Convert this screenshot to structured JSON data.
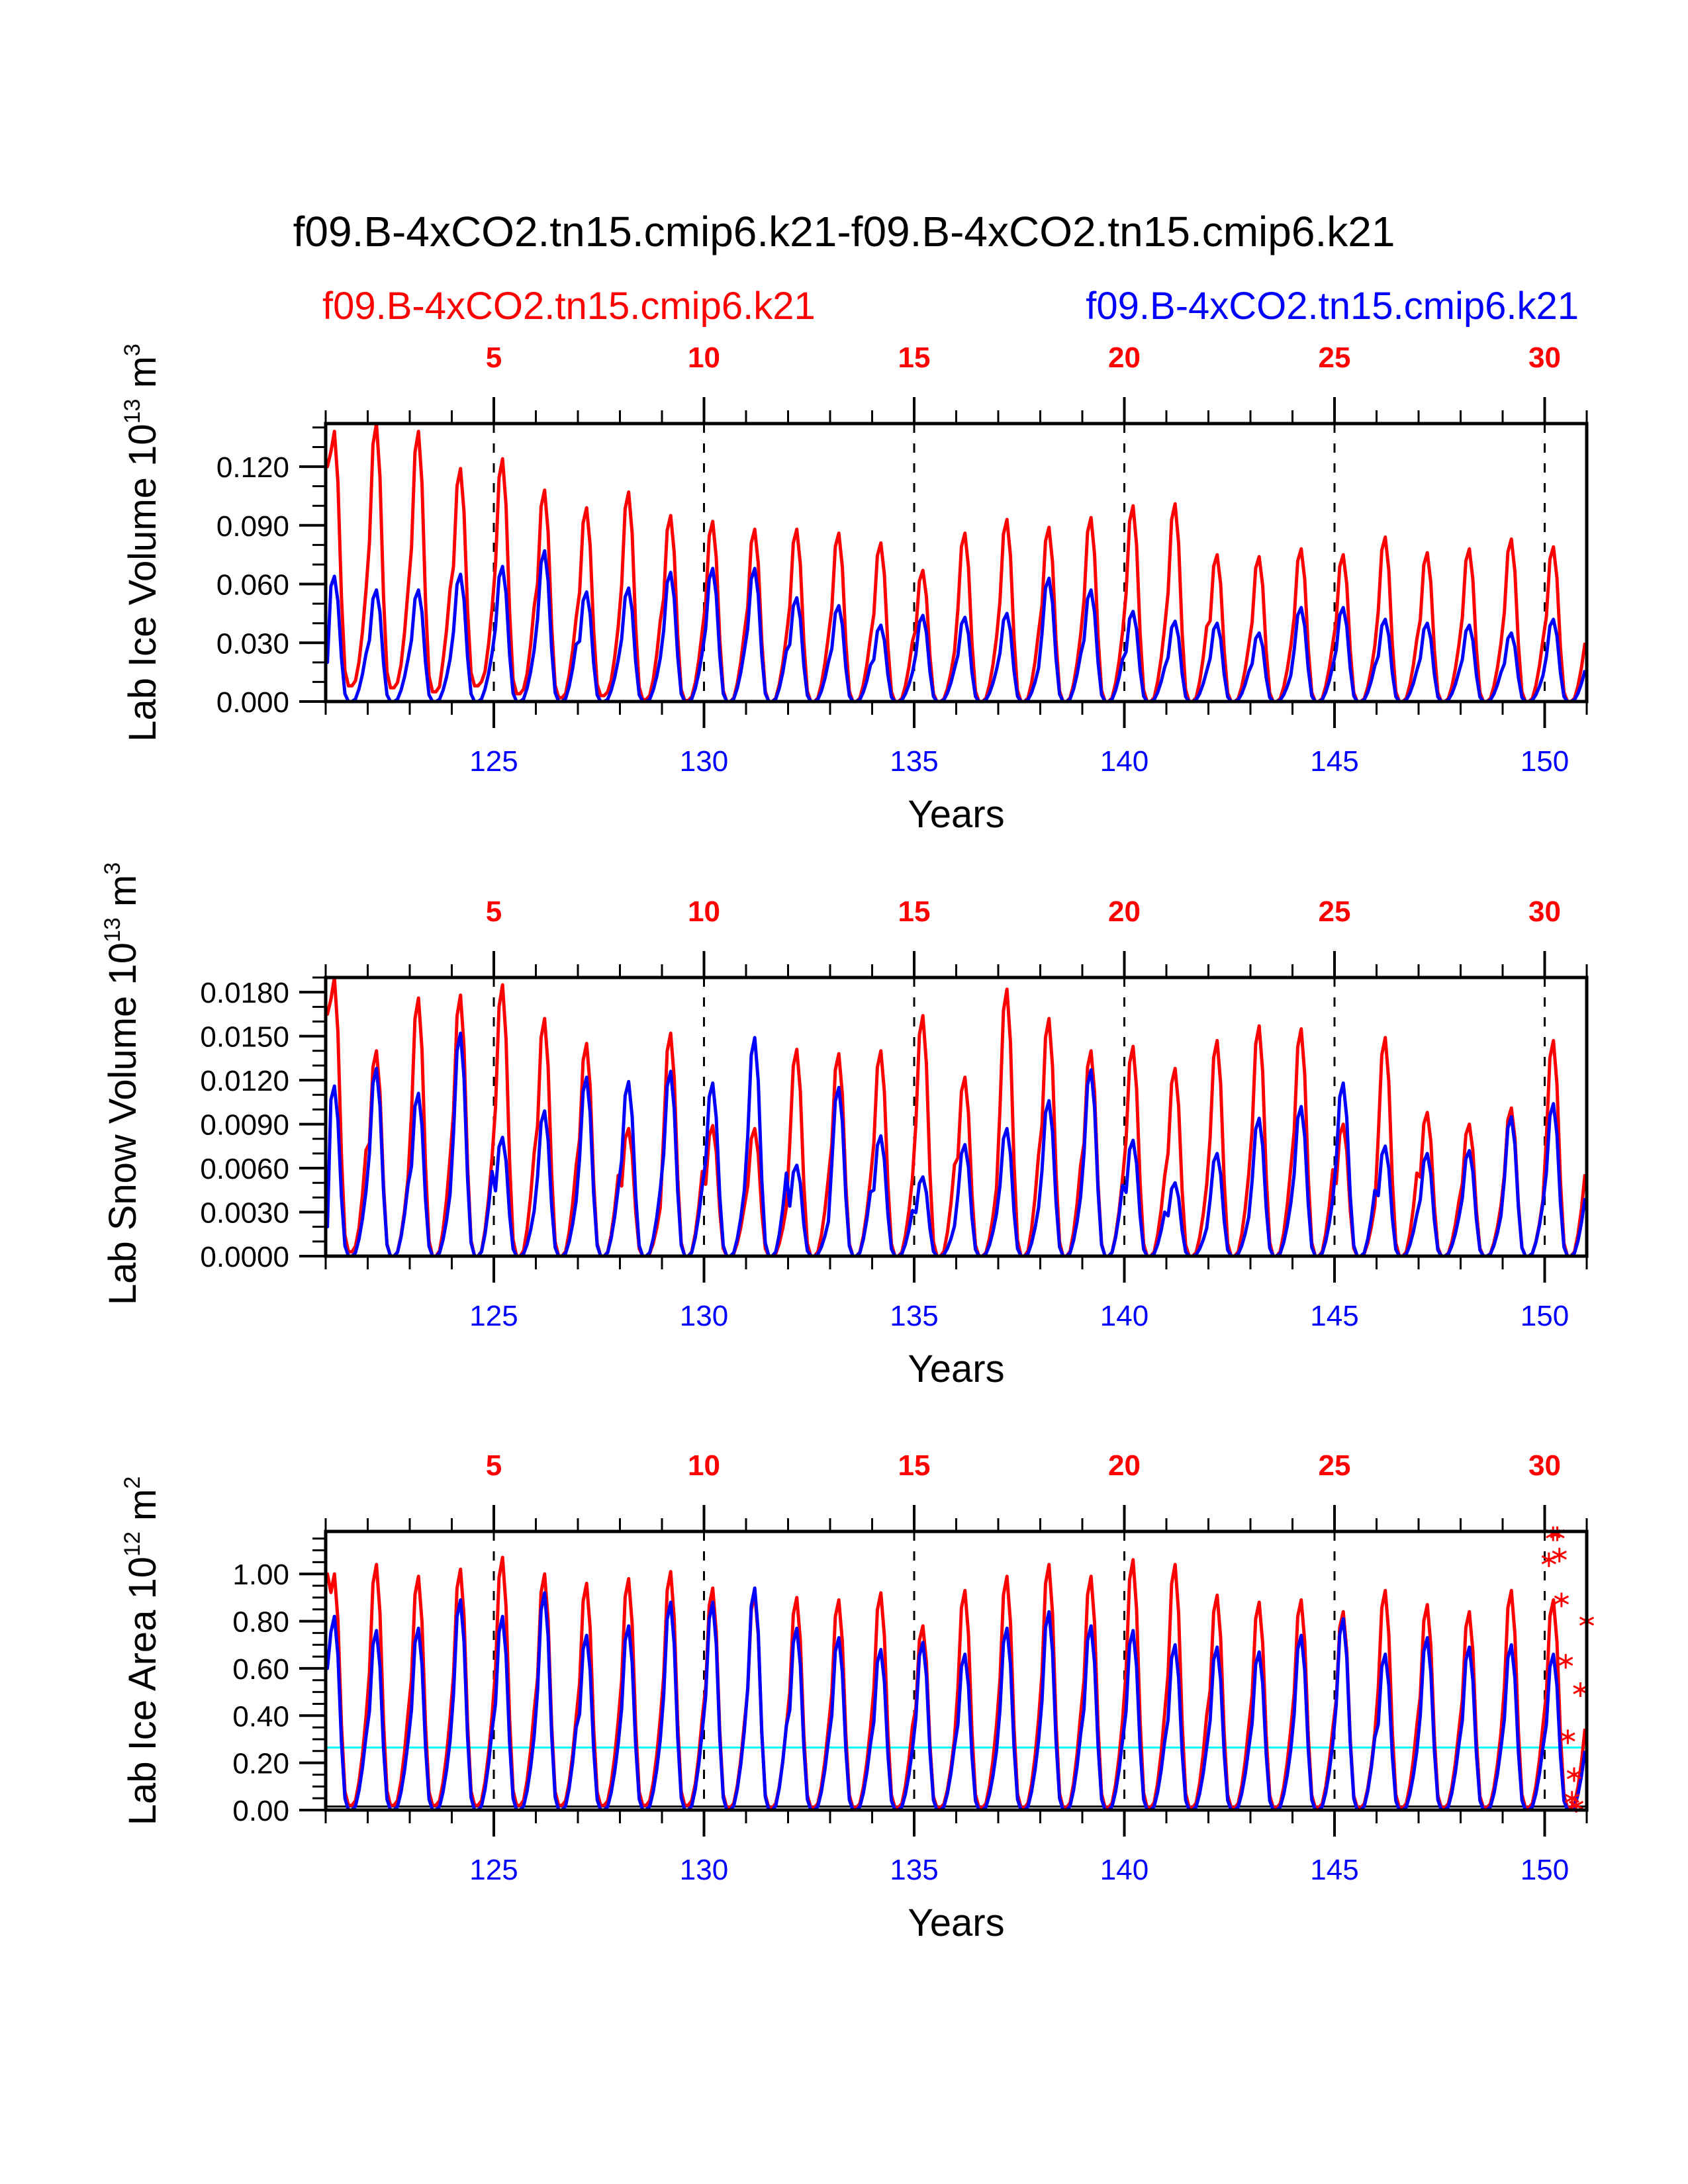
{
  "colors": {
    "series_a": "#ff0000",
    "series_b": "#0000ff",
    "reference_line": "#00ffff",
    "frame": "#000000"
  },
  "chart_data": {
    "type": "line",
    "title": "f09.B-4xCO2.tn15.cmip6.k21-f09.B-4xCO2.tn15.cmip6.k21",
    "legend": [
      {
        "name": "f09.B-4xCO2.tn15.cmip6.k21",
        "color": "#ff0000",
        "placement": "top-left"
      },
      {
        "name": "f09.B-4xCO2.tn15.cmip6.k21",
        "color": "#0000ff",
        "placement": "top-right"
      }
    ],
    "x_bottom": {
      "label": "Years",
      "range": [
        121,
        151
      ],
      "ticks": [
        125,
        130,
        135,
        140,
        145,
        150
      ],
      "tick_labels": [
        "125",
        "130",
        "135",
        "140",
        "145",
        "150"
      ],
      "minor_step": 1
    },
    "x_top": {
      "ticks": [
        125,
        130,
        135,
        140,
        145,
        150
      ],
      "tick_labels": [
        "5",
        "10",
        "15",
        "20",
        "25",
        "30"
      ]
    },
    "vertical_dashed_lines_at": [
      125,
      130,
      135,
      140,
      145,
      150
    ],
    "years": [
      121,
      122,
      123,
      124,
      125,
      126,
      127,
      128,
      129,
      130,
      131,
      132,
      133,
      134,
      135,
      136,
      137,
      138,
      139,
      140,
      141,
      142,
      143,
      144,
      145,
      146,
      147,
      148,
      149,
      150
    ],
    "panels": [
      {
        "ylabel": "Lab Ice Volume 10",
        "ylabel_exp": "13",
        "ylabel_unit": " m",
        "ylabel_unit_exp": "3",
        "ylim": [
          0,
          0.142
        ],
        "yticks": [
          0.0,
          0.03,
          0.06,
          0.09,
          0.12
        ],
        "ytick_labels": [
          "0.000",
          "0.030",
          "0.060",
          "0.090",
          "0.120"
        ],
        "minor_ystep": 0.01,
        "start_value": {
          "red": 0.12,
          "blue": 0.02
        },
        "series": [
          {
            "name": "f09.B-4xCO2.tn15.cmip6.k21",
            "color": "#ff0000",
            "annual_max": [
              0.138,
              0.142,
              0.138,
              0.119,
              0.124,
              0.108,
              0.099,
              0.107,
              0.095,
              0.092,
              0.088,
              0.088,
              0.086,
              0.081,
              0.067,
              0.086,
              0.093,
              0.089,
              0.094,
              0.1,
              0.101,
              0.075,
              0.074,
              0.078,
              0.075,
              0.084,
              0.076,
              0.078,
              0.083,
              0.079
            ],
            "annual_min": [
              0.008,
              0.007,
              0.005,
              0.008,
              0.004,
              0.002,
              0.003,
              0.001,
              0.0005,
              0.0,
              0.0,
              0.0,
              0.0,
              0.0,
              0.0,
              0.0,
              0.0,
              0.0,
              0.0,
              0.0,
              0.0,
              0.0,
              0.0,
              0.0,
              0.0,
              0.0,
              0.0,
              0.0,
              0.0,
              0.0
            ]
          },
          {
            "name": "f09.B-4xCO2.tn15.cmip6.k21",
            "color": "#0000ff",
            "annual_max": [
              0.064,
              0.057,
              0.057,
              0.065,
              0.069,
              0.077,
              0.056,
              0.058,
              0.066,
              0.068,
              0.068,
              0.053,
              0.049,
              0.039,
              0.044,
              0.043,
              0.045,
              0.063,
              0.057,
              0.046,
              0.041,
              0.04,
              0.035,
              0.048,
              0.048,
              0.042,
              0.04,
              0.039,
              0.035,
              0.042
            ],
            "annual_min": [
              0,
              0,
              0,
              0,
              0,
              0,
              0,
              0,
              0,
              0,
              0,
              0,
              0,
              0,
              0,
              0,
              0,
              0,
              0,
              0,
              0,
              0,
              0,
              0,
              0,
              0,
              0,
              0,
              0,
              0
            ]
          }
        ]
      },
      {
        "ylabel": "Lab Snow Volume 10",
        "ylabel_exp": "13",
        "ylabel_unit": " m",
        "ylabel_unit_exp": "3",
        "ylim": [
          0,
          0.019
        ],
        "yticks": [
          0.0,
          0.003,
          0.006,
          0.009,
          0.012,
          0.015,
          0.018
        ],
        "ytick_labels": [
          "0.0000",
          "0.0030",
          "0.0060",
          "0.0090",
          "0.0120",
          "0.0150",
          "0.0180"
        ],
        "minor_ystep": 0.001,
        "start_value": {
          "red": 0.0165,
          "blue": 0.002
        },
        "series": [
          {
            "name": "f09.B-4xCO2.tn15.cmip6.k21",
            "color": "#ff0000",
            "annual_max": [
              0.019,
              0.014,
              0.0176,
              0.0178,
              0.0185,
              0.0162,
              0.0145,
              0.0087,
              0.0152,
              0.0089,
              0.0087,
              0.0141,
              0.0138,
              0.014,
              0.0164,
              0.0122,
              0.0182,
              0.0162,
              0.014,
              0.0143,
              0.0128,
              0.0147,
              0.0157,
              0.0155,
              0.009,
              0.0149,
              0.0098,
              0.009,
              0.0101,
              0.0147
            ],
            "annual_min": [
              0.0003,
              0,
              0,
              0,
              0,
              0,
              0,
              0,
              0,
              0,
              0,
              0,
              0,
              0,
              0,
              0,
              0,
              0,
              0,
              0,
              0,
              0,
              0,
              0,
              0,
              0,
              0,
              0,
              0,
              0
            ]
          },
          {
            "name": "f09.B-4xCO2.tn15.cmip6.k21",
            "color": "#0000ff",
            "annual_max": [
              0.0116,
              0.0128,
              0.0111,
              0.0152,
              0.0081,
              0.0099,
              0.0122,
              0.0119,
              0.0126,
              0.0118,
              0.0149,
              0.0062,
              0.0115,
              0.0082,
              0.0054,
              0.0076,
              0.0087,
              0.0106,
              0.0127,
              0.0079,
              0.005,
              0.007,
              0.0094,
              0.0102,
              0.0118,
              0.0075,
              0.007,
              0.0072,
              0.0095,
              0.0104
            ],
            "annual_min": [
              0,
              0,
              0,
              0,
              0,
              0,
              0,
              0,
              0,
              0,
              0,
              0,
              0,
              0,
              0,
              0,
              0,
              0,
              0,
              0,
              0,
              0,
              0,
              0,
              0,
              0,
              0,
              0,
              0,
              0
            ]
          }
        ]
      },
      {
        "ylabel": "Lab Ice Area 10",
        "ylabel_exp": "12",
        "ylabel_unit": " m",
        "ylabel_unit_exp": "2",
        "ylim": [
          0,
          1.18
        ],
        "yticks": [
          0.0,
          0.2,
          0.4,
          0.6,
          0.8,
          1.0
        ],
        "ytick_labels": [
          "0.00",
          "0.20",
          "0.40",
          "0.60",
          "0.80",
          "1.00"
        ],
        "minor_ystep": 0.05,
        "start_value": {
          "red": 1.0,
          "blue": 0.6
        },
        "reference_lines": [
          {
            "y": 0.265,
            "color": "#00ffff"
          },
          {
            "y": 0.015,
            "color": "#000000"
          }
        ],
        "series": [
          {
            "name": "f09.B-4xCO2.tn15.cmip6.k21",
            "color": "#ff0000",
            "annual_max": [
              1.0,
              1.04,
              0.99,
              1.02,
              1.07,
              1.0,
              0.96,
              0.98,
              1.01,
              0.94,
              0.92,
              0.9,
              0.89,
              0.92,
              0.78,
              0.93,
              0.99,
              1.04,
              0.99,
              1.06,
              1.04,
              0.91,
              0.88,
              0.89,
              0.84,
              0.93,
              0.87,
              0.84,
              0.93,
              0.89
            ],
            "annual_min": [
              0.02,
              0.02,
              0.02,
              0.02,
              0.02,
              0.02,
              0.02,
              0.02,
              0.02,
              0.01,
              0.01,
              0.01,
              0.01,
              0.01,
              0.01,
              0.01,
              0.01,
              0.01,
              0.01,
              0.01,
              0.01,
              0.01,
              0.01,
              0.01,
              0.01,
              0.01,
              0.01,
              0.01,
              0.01,
              0.01
            ]
          },
          {
            "name": "f09.B-4xCO2.tn15.cmip6.k21",
            "color": "#0000ff",
            "annual_max": [
              0.82,
              0.76,
              0.77,
              0.89,
              0.82,
              0.92,
              0.74,
              0.78,
              0.88,
              0.88,
              0.94,
              0.77,
              0.73,
              0.68,
              0.71,
              0.66,
              0.77,
              0.84,
              0.78,
              0.76,
              0.7,
              0.69,
              0.67,
              0.74,
              0.81,
              0.66,
              0.73,
              0.69,
              0.7,
              0.66
            ],
            "annual_min": [
              0,
              0,
              0,
              0,
              0,
              0,
              0,
              0,
              0,
              0,
              0,
              0,
              0,
              0,
              0,
              0,
              0,
              0,
              0,
              0,
              0,
              0,
              0,
              0,
              0,
              0,
              0,
              0,
              0,
              0
            ]
          }
        ],
        "markers": {
          "symbol": "asterisk",
          "color": "#ff0000",
          "points": [
            [
              150.1,
              1.06
            ],
            [
              150.2,
              1.17
            ],
            [
              150.3,
              1.17
            ],
            [
              150.35,
              1.08
            ],
            [
              150.4,
              0.89
            ],
            [
              150.5,
              0.63
            ],
            [
              150.55,
              0.31
            ],
            [
              150.7,
              0.15
            ],
            [
              150.65,
              0.05
            ],
            [
              150.75,
              0.02
            ],
            [
              150.85,
              0.51
            ],
            [
              151.0,
              0.8
            ]
          ]
        }
      }
    ]
  }
}
